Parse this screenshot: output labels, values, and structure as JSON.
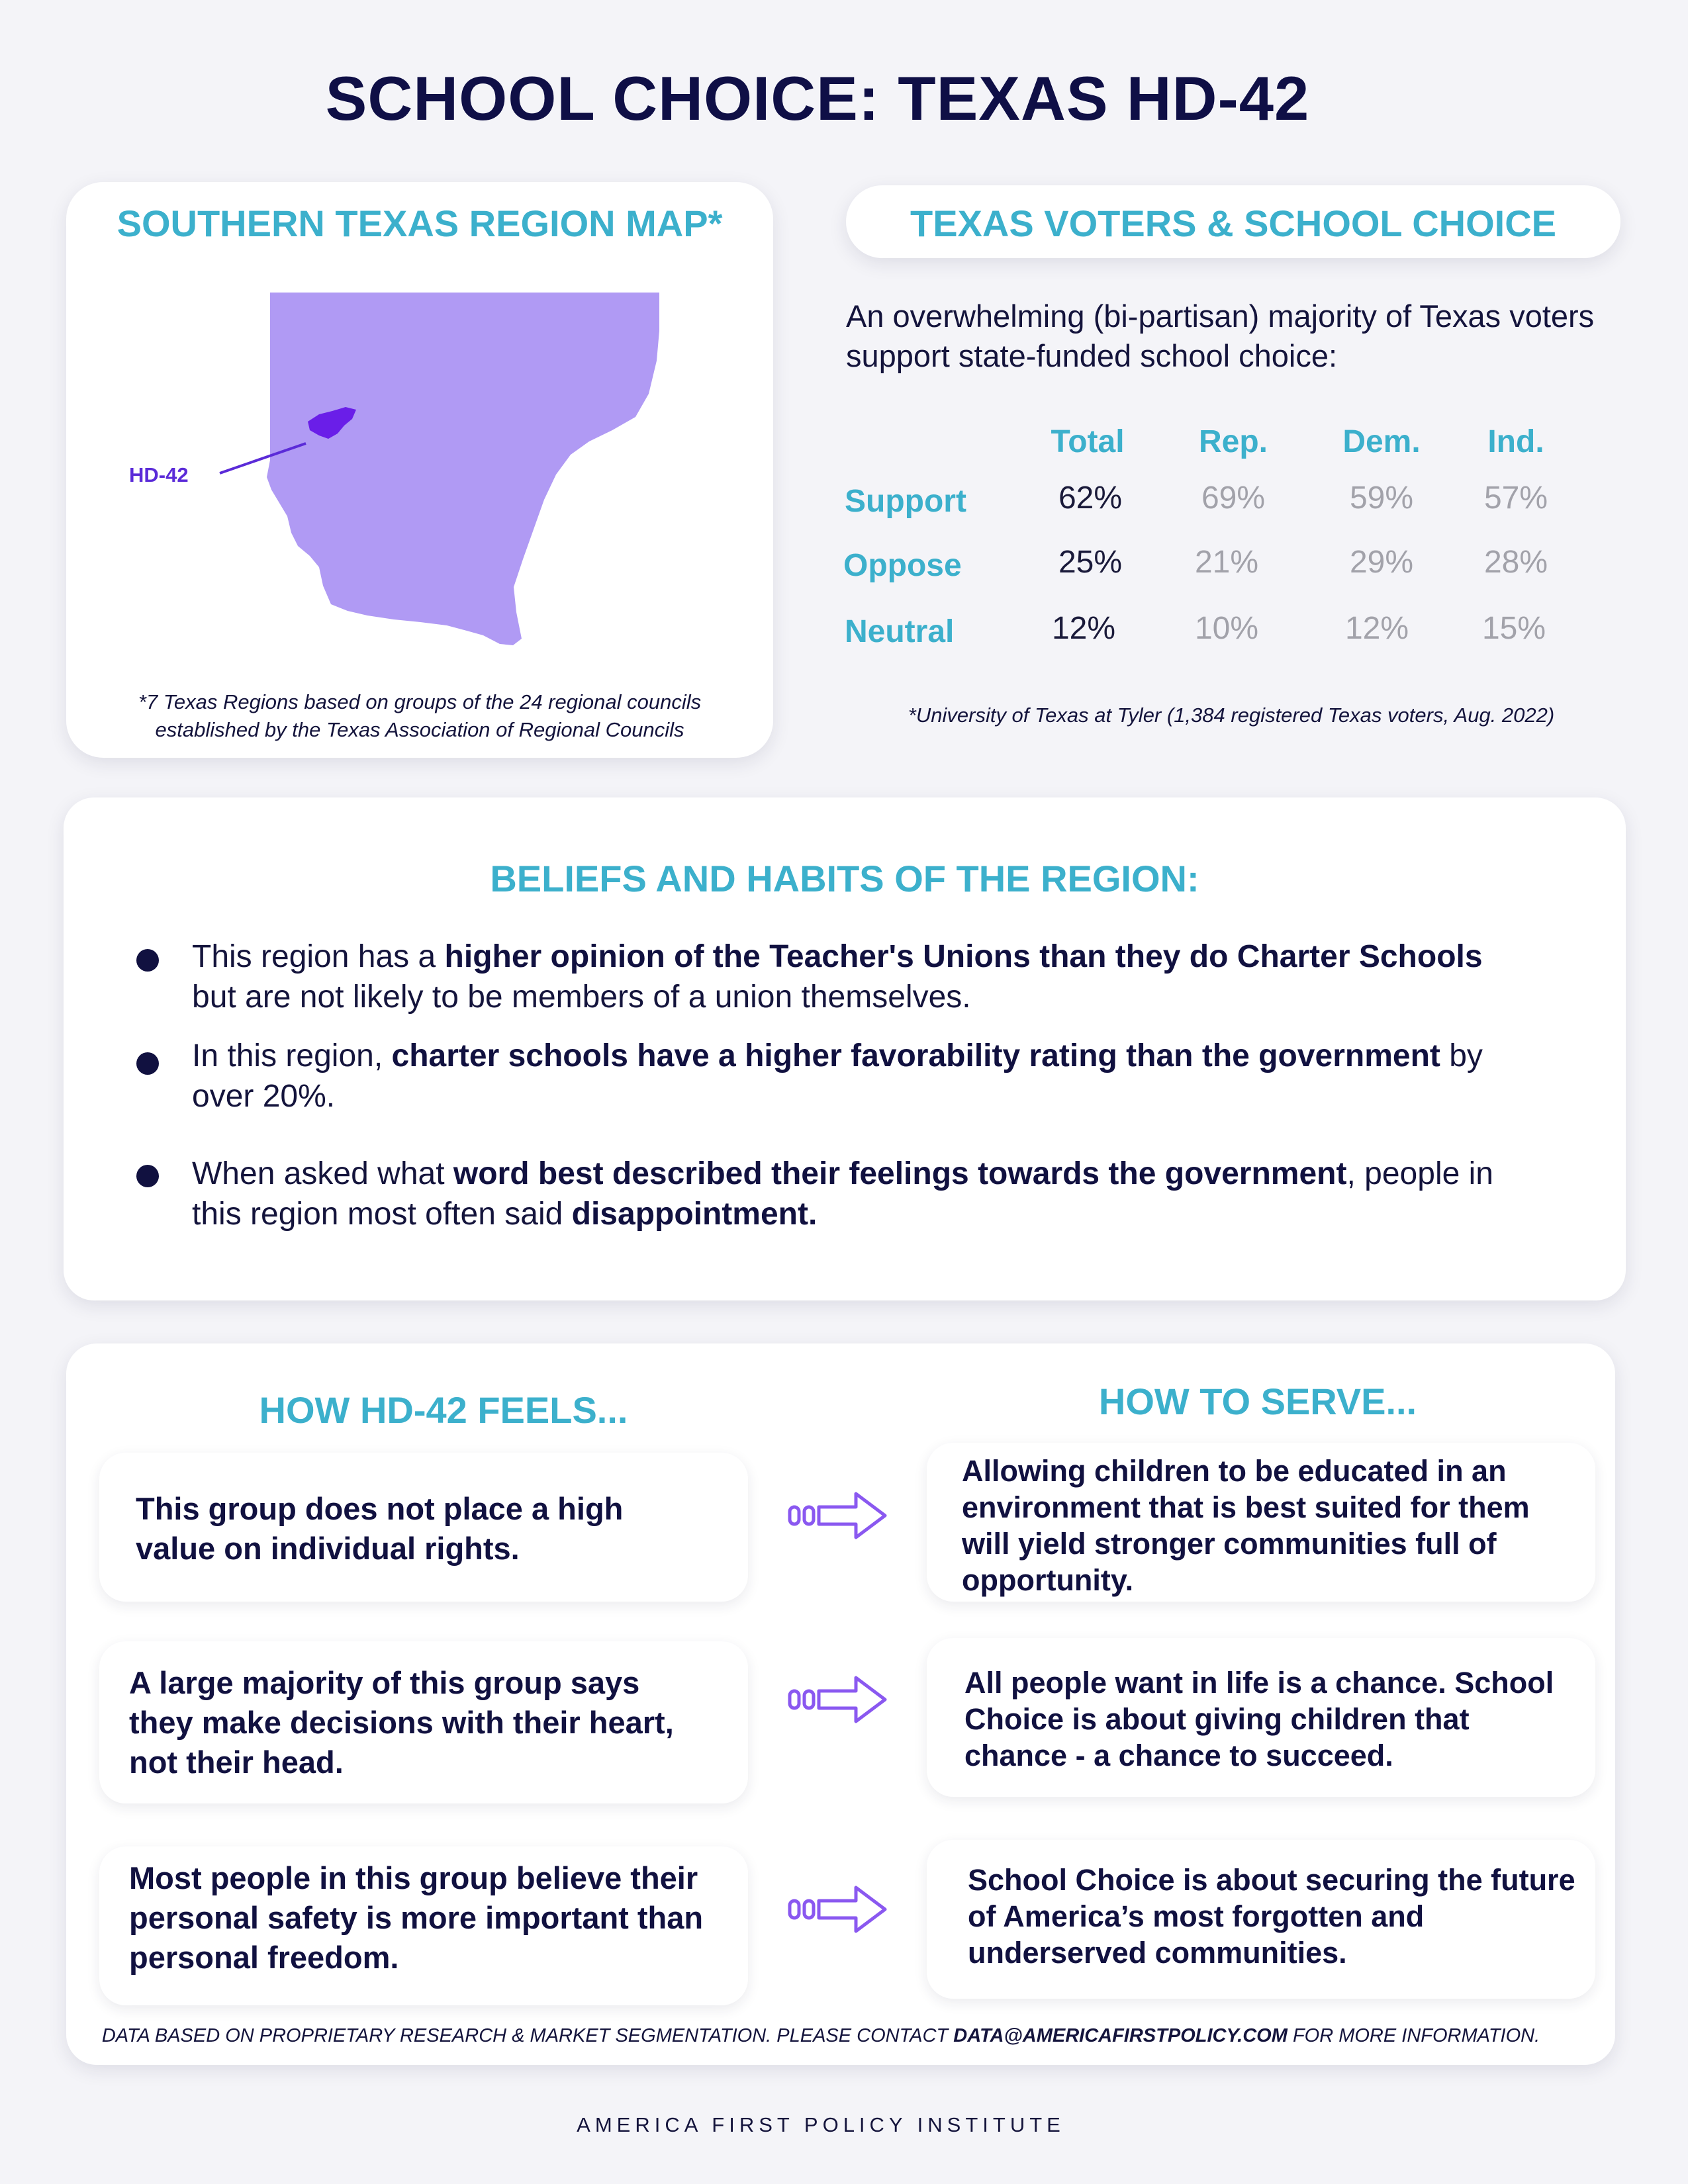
{
  "title": "SCHOOL CHOICE: TEXAS HD-42",
  "map_card": {
    "heading": "SOUTHERN TEXAS REGION MAP*",
    "district_label": "HD-42",
    "region_color": "#b09af4",
    "district_color": "#6a1ee8",
    "note_line1": "*7 Texas Regions based on groups of the 24 regional councils",
    "note_line2": "established by the Texas Association of Regional Councils"
  },
  "voters_card": {
    "heading": "TEXAS VOTERS & SCHOOL CHOICE",
    "intro": "An overwhelming (bi-partisan) majority of Texas voters support state-funded school choice:",
    "columns": [
      "Total",
      "Rep.",
      "Dem.",
      "Ind."
    ],
    "rows": [
      {
        "label": "Support",
        "values": [
          "62%",
          "69%",
          "59%",
          "57%"
        ]
      },
      {
        "label": "Oppose",
        "values": [
          "25%",
          "21%",
          "29%",
          "28%"
        ]
      },
      {
        "label": "Neutral",
        "values": [
          "12%",
          "10%",
          "12%",
          "15%"
        ]
      }
    ],
    "source": "*University of Texas at Tyler (1,384 registered Texas voters, Aug. 2022)"
  },
  "beliefs": {
    "heading": "BELIEFS AND HABITS OF THE REGION:",
    "items": [
      {
        "pre": "This region has a ",
        "bold": "higher opinion of the Teacher's Unions than they do Charter Schools",
        "post": " but are not likely to be members of a union themselves."
      },
      {
        "pre": "In this region, ",
        "bold": "charter schools have a higher favorability rating than the government",
        "post": " by over 20%."
      },
      {
        "pre": "When asked what ",
        "bold": "word best described their feelings towards the government",
        "mid": ", people in this region most often said ",
        "bold2": "disappointment."
      }
    ]
  },
  "feels_serve": {
    "feels_heading": "HOW HD-42 FEELS...",
    "serve_heading": "HOW TO SERVE...",
    "arrow_color": "#8a58f0",
    "pairs": [
      {
        "feel": "This group does not place a high value on individual rights.",
        "serve": "Allowing children to be educated in an environment that is best suited for them will yield stronger communities full of opportunity."
      },
      {
        "feel": "A large majority of this group says they make decisions with their heart, not their head.",
        "serve": "All people want in life is a chance. School Choice is about giving children that chance - a chance to succeed."
      },
      {
        "feel": "Most people in this group believe their personal safety is more important than personal freedom.",
        "serve": "School Choice is about securing the future of America’s most forgotten and underserved communities."
      }
    ]
  },
  "footer": {
    "note_pre": "DATA BASED ON PROPRIETARY RESEARCH & MARKET SEGMENTATION. PLEASE CONTACT ",
    "email": "DATA@AMERICAFIRSTPOLICY.COM",
    "note_post": " FOR MORE INFORMATION.",
    "org": "AMERICA FIRST POLICY INSTITUTE"
  }
}
